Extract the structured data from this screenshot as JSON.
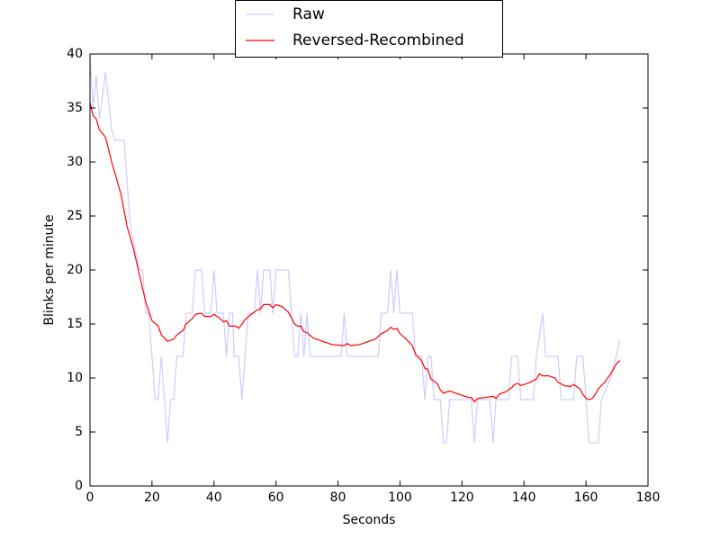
{
  "chart_data": {
    "type": "line",
    "xlabel": "Seconds",
    "ylabel": "Blinks per minute",
    "xlim": [
      0,
      180
    ],
    "xticks": [
      0,
      20,
      40,
      60,
      80,
      100,
      120,
      140,
      160,
      180
    ],
    "ylim": [
      0,
      40
    ],
    "yticks": [
      0,
      5,
      10,
      15,
      20,
      25,
      30,
      35,
      40
    ],
    "legend": "top",
    "series": [
      {
        "name": "Raw",
        "color": "#ccccff",
        "x": [
          0,
          1,
          2,
          3,
          4,
          5,
          7,
          8,
          11,
          13,
          16,
          17,
          18,
          19,
          21,
          22,
          23,
          24,
          25,
          26,
          27,
          28,
          30,
          31,
          33,
          34,
          36,
          37,
          39,
          40,
          41,
          43,
          44,
          45,
          46,
          46.5,
          48,
          49,
          50,
          51,
          53,
          54,
          55,
          56,
          58,
          59,
          60,
          64,
          65,
          66,
          67,
          68,
          69,
          70,
          71,
          81,
          82,
          83,
          93,
          94,
          96,
          97,
          98,
          99,
          100,
          104,
          105,
          107,
          108,
          109,
          110,
          111,
          113,
          114,
          115,
          116,
          123,
          124,
          125,
          129,
          130,
          131,
          135,
          136,
          138,
          139,
          143,
          144,
          146,
          147,
          151,
          152,
          156,
          157,
          159,
          160,
          161,
          164,
          165,
          168,
          171
        ],
        "values": [
          40,
          35,
          38,
          34,
          36,
          38.3,
          33,
          32,
          32,
          24,
          20,
          20,
          16,
          16,
          8,
          8,
          12,
          8,
          4,
          8,
          8,
          12,
          12,
          16,
          16,
          20,
          20,
          16,
          16,
          20,
          16,
          16,
          12,
          16,
          16,
          12,
          12,
          8,
          12,
          16,
          16,
          20,
          16,
          20,
          20,
          16,
          20,
          20,
          16,
          12,
          12,
          16,
          12,
          16,
          12,
          12,
          16,
          12,
          12,
          16,
          16,
          20,
          16,
          20,
          16,
          16,
          12,
          12,
          8,
          12,
          12,
          8,
          8,
          4,
          4,
          8,
          8,
          4,
          8,
          8,
          4,
          8,
          8,
          12,
          12,
          8,
          8,
          12,
          16,
          12,
          12,
          8,
          8,
          12,
          12,
          8,
          4,
          4,
          8,
          10,
          13.5
        ]
      },
      {
        "name": "Reversed-Recombined",
        "color": "#ff0000",
        "x": [
          0,
          1,
          2,
          3,
          5,
          7,
          10,
          12,
          14,
          16,
          18,
          20,
          22,
          23,
          25,
          27,
          28,
          30,
          31,
          33,
          34,
          36,
          37,
          39,
          40,
          42,
          43,
          44,
          45,
          47,
          48,
          50,
          52,
          54,
          55,
          56,
          58,
          59,
          60,
          62,
          64,
          66,
          67,
          68,
          69,
          70,
          72,
          75,
          78,
          82,
          83,
          84,
          87,
          90,
          92,
          94,
          96,
          97,
          98,
          99,
          100,
          102,
          104,
          105,
          107,
          108,
          109,
          110,
          112,
          113,
          114,
          116,
          118,
          120,
          122,
          123,
          124,
          125,
          130,
          131,
          132,
          134,
          136,
          137,
          138,
          139,
          142,
          144,
          145,
          146,
          148,
          150,
          151,
          153,
          155,
          156,
          157,
          158,
          159,
          160,
          161,
          162,
          163,
          164,
          166,
          168,
          170,
          171
        ],
        "values": [
          35.5,
          34.3,
          34,
          33,
          32.3,
          30,
          27,
          24,
          22,
          19.5,
          17,
          15.3,
          14.8,
          14,
          13.4,
          13.6,
          14,
          14.4,
          15,
          15.5,
          15.9,
          16,
          15.7,
          15.7,
          15.9,
          15.5,
          15.2,
          15.3,
          14.8,
          14.8,
          14.6,
          15.4,
          15.9,
          16.3,
          16.4,
          16.8,
          16.8,
          16.5,
          16.8,
          16.6,
          16.1,
          15,
          14.8,
          14.8,
          14.3,
          14.2,
          13.7,
          13.4,
          13.1,
          13,
          13.2,
          13,
          13.1,
          13.4,
          13.6,
          14.1,
          14.4,
          14.7,
          14.5,
          14.6,
          14.1,
          13.6,
          13,
          12.2,
          11.6,
          10.9,
          10.8,
          9.9,
          9.5,
          8.9,
          8.6,
          8.8,
          8.6,
          8.4,
          8.2,
          8.2,
          7.8,
          8.1,
          8.3,
          8.1,
          8.5,
          8.7,
          9.1,
          9.4,
          9.5,
          9.3,
          9.6,
          9.9,
          10.4,
          10.2,
          10.2,
          10,
          9.6,
          9.3,
          9.2,
          9.4,
          9.2,
          9,
          8.5,
          8.1,
          8,
          8.1,
          8.5,
          9,
          9.6,
          10.4,
          11.4,
          11.6
        ]
      }
    ]
  }
}
